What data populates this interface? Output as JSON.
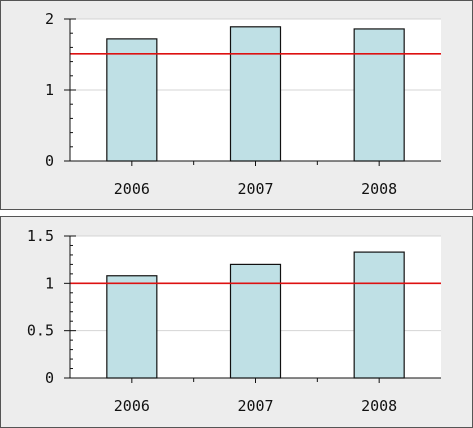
{
  "colors": {
    "bar_fill": "#bfe0e5",
    "bar_stroke": "#111111",
    "reference_line": "#dd1111",
    "grid": "#d4d4d4",
    "plot_background": "#ffffff",
    "panel_background": "#ededed"
  },
  "chart_data": [
    {
      "type": "bar",
      "categories": [
        "2006",
        "2007",
        "2008"
      ],
      "values": [
        1.72,
        1.89,
        1.86
      ],
      "reference_line": 1.51,
      "ylim": [
        0,
        2
      ],
      "yticks": [
        0,
        1,
        2
      ],
      "yticks_labels": [
        "0",
        "1",
        "2"
      ],
      "grid": true,
      "title": "",
      "xlabel": "",
      "ylabel": ""
    },
    {
      "type": "bar",
      "categories": [
        "2006",
        "2007",
        "2008"
      ],
      "values": [
        1.08,
        1.2,
        1.33
      ],
      "reference_line": 1.0,
      "ylim": [
        0,
        1.5
      ],
      "yticks": [
        0,
        0.5,
        1,
        1.5
      ],
      "yticks_labels": [
        "0",
        "0.5",
        "1",
        "1.5"
      ],
      "grid": true,
      "title": "",
      "xlabel": "",
      "ylabel": ""
    }
  ]
}
